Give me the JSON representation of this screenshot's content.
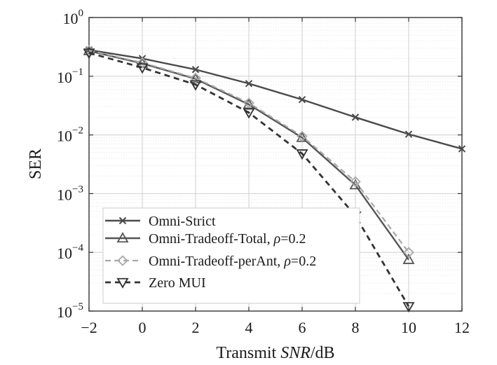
{
  "chart_data": {
    "type": "line",
    "title": "",
    "xlabel": {
      "prefix": "Transmit ",
      "italic": "SNR",
      "suffix": "/dB"
    },
    "ylabel": "SER",
    "xlim": [
      -2,
      12
    ],
    "ylim": [
      1e-05,
      1
    ],
    "yscale": "log",
    "grid": true,
    "legend_position": "bottom-left",
    "xticks": [
      {
        "value": -2,
        "label": "−2"
      },
      {
        "value": 0,
        "label": "0"
      },
      {
        "value": 2,
        "label": "2"
      },
      {
        "value": 4,
        "label": "4"
      },
      {
        "value": 6,
        "label": "6"
      },
      {
        "value": 8,
        "label": "8"
      },
      {
        "value": 10,
        "label": "10"
      },
      {
        "value": 12,
        "label": "12"
      }
    ],
    "yticks": [
      {
        "exp": -5,
        "base": "10",
        "sup": "−5"
      },
      {
        "exp": -4,
        "base": "10",
        "sup": "−4"
      },
      {
        "exp": -3,
        "base": "10",
        "sup": "−3"
      },
      {
        "exp": -2,
        "base": "10",
        "sup": "−2"
      },
      {
        "exp": -1,
        "base": "10",
        "sup": "−1"
      },
      {
        "exp": 0,
        "base": "10",
        "sup": "0"
      }
    ],
    "series": [
      {
        "name": "Omni-Strict",
        "label": "Omni-Strict",
        "color": "#4a4a4a",
        "dash": "solid",
        "marker": "x",
        "x": [
          -2,
          0,
          2,
          4,
          6,
          8,
          10,
          12
        ],
        "y": [
          0.28,
          0.2,
          0.13,
          0.075,
          0.04,
          0.02,
          0.0103,
          0.0058
        ]
      },
      {
        "name": "Omni-Tradeoff-Total",
        "label": "Omni-Tradeoff-Total, ",
        "rho": "ρ",
        "rho_value": "=0.2",
        "color": "#555555",
        "dash": "solid",
        "marker": "triangle-up",
        "x": [
          -2,
          0,
          2,
          4,
          6,
          8,
          10
        ],
        "y": [
          0.27,
          0.165,
          0.09,
          0.033,
          0.009,
          0.0014,
          7.5e-05
        ]
      },
      {
        "name": "Omni-Tradeoff-perAnt",
        "label": "Omni-Tradeoff-perAnt, ",
        "rho": "ρ",
        "rho_value": "=0.2",
        "color": "#a8a8a8",
        "dash": "dashed",
        "marker": "diamond",
        "x": [
          -2,
          0,
          2,
          4,
          6,
          8,
          10
        ],
        "y": [
          0.275,
          0.17,
          0.093,
          0.035,
          0.0095,
          0.0016,
          0.0001
        ]
      },
      {
        "name": "Zero MUI",
        "label": "Zero MUI",
        "color": "#333333",
        "dash": "dashed-bold",
        "marker": "triangle-down",
        "x": [
          -2,
          0,
          2,
          4,
          6,
          8,
          10
        ],
        "y": [
          0.25,
          0.14,
          0.072,
          0.024,
          0.0048,
          0.00042,
          1.2e-05
        ]
      }
    ]
  }
}
